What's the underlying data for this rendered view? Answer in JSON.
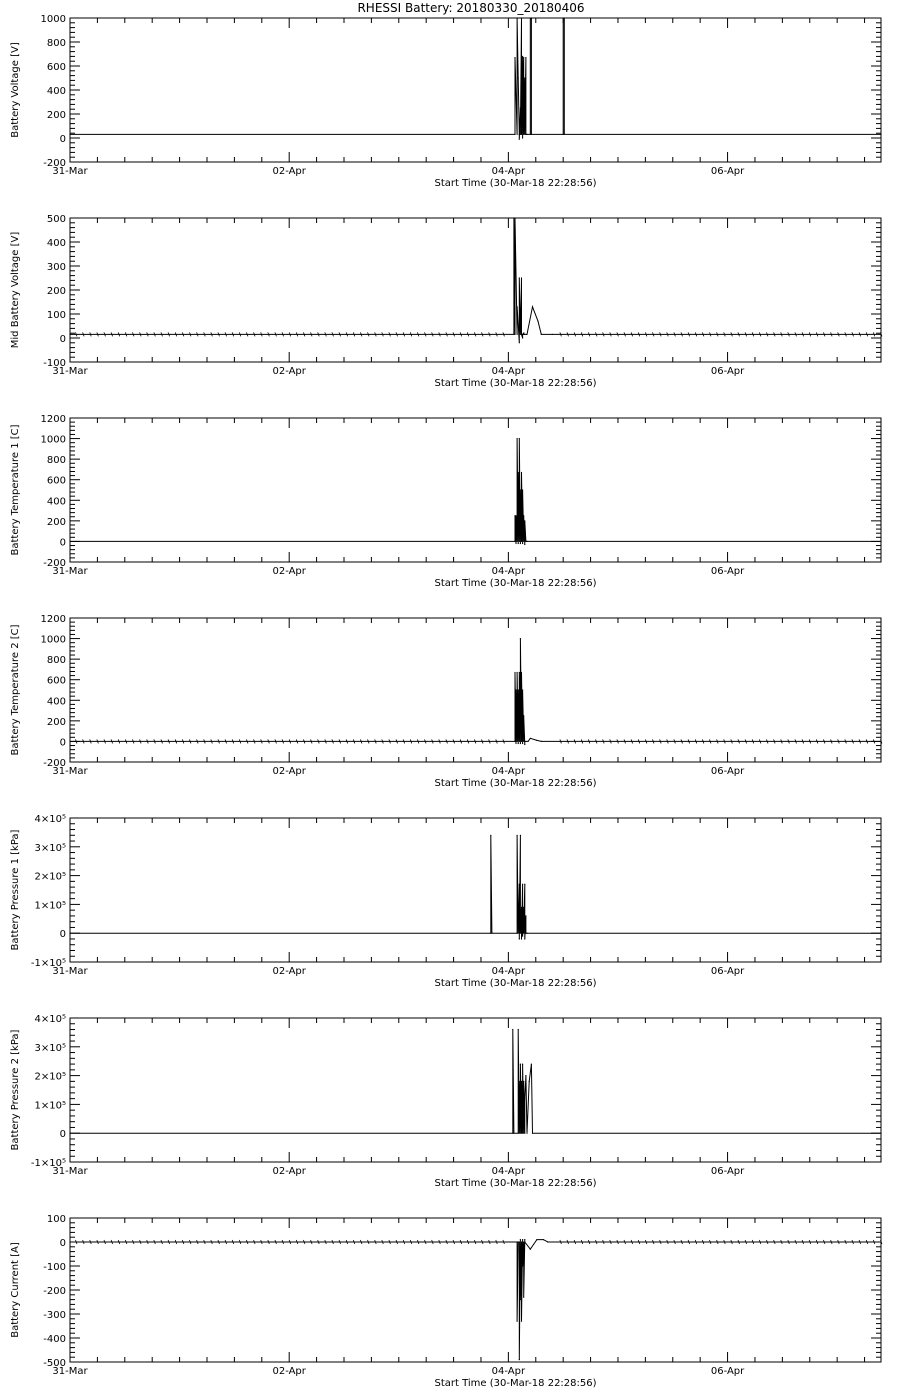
{
  "title": "RHESSI Battery: 20180330_20180406",
  "x_axis": {
    "label": "Start Time (30-Mar-18 22:28:56)",
    "ticks": [
      "31-Mar",
      "02-Apr",
      "04-Apr",
      "06-Apr"
    ]
  },
  "chart_data": [
    {
      "type": "line",
      "ylabel": "Battery Voltage [V]",
      "ylim": [
        -200,
        1000
      ],
      "yticks": [
        "-200",
        "0",
        "200",
        "400",
        "600",
        "800",
        "1000"
      ],
      "baseline": 30,
      "series": [
        {
          "x": [
            0,
            4.06,
            4.06,
            4.08,
            4.08,
            4.09,
            4.1,
            4.1,
            4.11,
            4.11,
            4.12,
            4.12,
            4.13,
            4.13,
            4.14,
            4.14,
            4.15,
            4.15,
            4.16,
            4.16,
            4.17,
            4.2,
            4.2,
            4.21,
            4.21,
            4.5,
            4.5,
            4.51,
            4.51,
            7.4
          ],
          "y": [
            30,
            30,
            670,
            30,
            1000,
            500,
            30,
            -10,
            250,
            30,
            1000,
            30,
            680,
            0,
            670,
            30,
            500,
            30,
            670,
            30,
            30,
            30,
            1000,
            1000,
            30,
            30,
            1000,
            1000,
            30,
            30
          ]
        }
      ]
    },
    {
      "type": "line",
      "ylabel": "Mid Battery Voltage [V]",
      "ylim": [
        -100,
        500
      ],
      "yticks": [
        "-100",
        "0",
        "100",
        "200",
        "300",
        "400",
        "500"
      ],
      "baseline": 15,
      "series": [
        {
          "x": [
            0,
            4.05,
            4.05,
            4.06,
            4.06,
            4.08,
            4.08,
            4.1,
            4.1,
            4.11,
            4.12,
            4.12,
            4.13,
            4.13,
            4.14,
            4.14,
            4.15,
            4.17,
            4.22,
            4.27,
            4.3,
            4.4,
            7.4
          ],
          "y": [
            15,
            15,
            500,
            15,
            500,
            15,
            130,
            -20,
            250,
            15,
            250,
            15,
            0,
            15,
            20,
            15,
            15,
            15,
            130,
            70,
            15,
            15,
            15
          ]
        }
      ]
    },
    {
      "type": "line",
      "ylabel": "Battery Temperature 1 [C]",
      "ylim": [
        -200,
        1200
      ],
      "yticks": [
        "-200",
        "0",
        "200",
        "400",
        "600",
        "800",
        "1000",
        "1200"
      ],
      "baseline": 0,
      "series": [
        {
          "x": [
            0,
            4.06,
            4.06,
            4.07,
            4.07,
            4.08,
            4.08,
            4.09,
            4.09,
            4.1,
            4.1,
            4.11,
            4.11,
            4.12,
            4.12,
            4.13,
            4.13,
            4.14,
            4.14,
            4.15,
            4.15,
            4.16,
            4.16,
            4.17,
            7.4
          ],
          "y": [
            0,
            0,
            250,
            -20,
            250,
            0,
            1000,
            -20,
            670,
            0,
            1000,
            -20,
            500,
            0,
            670,
            -20,
            500,
            0,
            250,
            -30,
            200,
            0,
            0,
            0,
            0
          ]
        }
      ]
    },
    {
      "type": "line",
      "ylabel": "Battery Temperature 2 [C]",
      "ylim": [
        -200,
        1200
      ],
      "yticks": [
        "-200",
        "0",
        "200",
        "400",
        "600",
        "800",
        "1000",
        "1200"
      ],
      "baseline": 0,
      "series": [
        {
          "x": [
            0,
            4.06,
            4.06,
            4.07,
            4.07,
            4.08,
            4.08,
            4.09,
            4.09,
            4.1,
            4.1,
            4.11,
            4.11,
            4.12,
            4.12,
            4.13,
            4.13,
            4.14,
            4.14,
            4.15,
            4.15,
            4.18,
            4.2,
            4.26,
            4.3,
            7.4
          ],
          "y": [
            0,
            0,
            670,
            -20,
            500,
            0,
            670,
            -20,
            500,
            0,
            670,
            -20,
            1000,
            0,
            670,
            -20,
            500,
            0,
            250,
            -30,
            0,
            0,
            30,
            10,
            0,
            0
          ]
        }
      ]
    },
    {
      "type": "line",
      "ylabel": "Battery Pressure 1 [kPa]",
      "ylim": [
        -100000,
        400000
      ],
      "yticks": [
        "-1×10⁵",
        "0",
        "1×10⁵",
        "2×10⁵",
        "3×10⁵",
        "4×10⁵"
      ],
      "baseline": 0,
      "series": [
        {
          "x": [
            0,
            3.84,
            3.84,
            3.85,
            4.08,
            4.08,
            4.09,
            4.1,
            4.1,
            4.11,
            4.11,
            4.12,
            4.12,
            4.13,
            4.13,
            4.14,
            4.14,
            4.15,
            4.15,
            4.16,
            4.16,
            4.17,
            7.4
          ],
          "y": [
            0,
            0,
            340000,
            0,
            0,
            340000,
            0,
            170000,
            -20000,
            340000,
            0,
            90000,
            -20000,
            170000,
            -10000,
            90000,
            0,
            170000,
            -20000,
            60000,
            0,
            0,
            0
          ]
        }
      ]
    },
    {
      "type": "line",
      "ylabel": "Battery Pressure 2 [kPa]",
      "ylim": [
        -100000,
        400000
      ],
      "yticks": [
        "-1×10⁵",
        "0",
        "1×10⁵",
        "2×10⁵",
        "3×10⁵",
        "4×10⁵"
      ],
      "baseline": 0,
      "series": [
        {
          "x": [
            0,
            4.04,
            4.04,
            4.05,
            4.09,
            4.09,
            4.1,
            4.1,
            4.11,
            4.11,
            4.12,
            4.12,
            4.13,
            4.13,
            4.14,
            4.14,
            4.15,
            4.15,
            4.16,
            4.17,
            4.19,
            4.21,
            4.22,
            7.4
          ],
          "y": [
            0,
            0,
            360000,
            0,
            0,
            360000,
            0,
            180000,
            0,
            240000,
            0,
            180000,
            0,
            240000,
            0,
            180000,
            0,
            120000,
            200000,
            0,
            180000,
            240000,
            0,
            0
          ]
        }
      ]
    },
    {
      "type": "line",
      "ylabel": "Battery Current [A]",
      "ylim": [
        -500,
        100
      ],
      "yticks": [
        "-500",
        "-400",
        "-300",
        "-200",
        "-100",
        "0",
        "100"
      ],
      "baseline": 0,
      "series": [
        {
          "x": [
            0,
            4.08,
            4.08,
            4.09,
            4.1,
            4.1,
            4.11,
            4.11,
            4.12,
            4.12,
            4.13,
            4.13,
            4.14,
            4.14,
            4.15,
            4.15,
            4.2,
            4.26,
            4.32,
            4.36,
            7.4
          ],
          "y": [
            0,
            0,
            -330,
            0,
            0,
            -490,
            10,
            -240,
            0,
            -330,
            10,
            -100,
            0,
            -230,
            10,
            0,
            -30,
            10,
            10,
            0,
            0
          ]
        }
      ]
    }
  ]
}
